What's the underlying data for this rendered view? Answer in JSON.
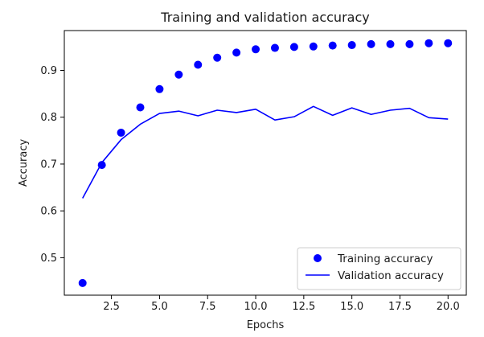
{
  "chart_data": {
    "type": "line",
    "title": "Training and validation accuracy",
    "xlabel": "Epochs",
    "ylabel": "Accuracy",
    "xlim": [
      0.05,
      20.95
    ],
    "ylim": [
      0.42,
      0.985
    ],
    "x_ticks": [
      2.5,
      5.0,
      7.5,
      10.0,
      12.5,
      15.0,
      17.5,
      20.0
    ],
    "x_tick_labels": [
      "2.5",
      "5.0",
      "7.5",
      "10.0",
      "12.5",
      "15.0",
      "17.5",
      "20.0"
    ],
    "y_ticks": [
      0.5,
      0.6,
      0.7,
      0.8,
      0.9
    ],
    "y_tick_labels": [
      "0.5",
      "0.6",
      "0.7",
      "0.8",
      "0.9"
    ],
    "grid": false,
    "legend_position": "lower-right",
    "x": [
      1,
      2,
      3,
      4,
      5,
      6,
      7,
      8,
      9,
      10,
      11,
      12,
      13,
      14,
      15,
      16,
      17,
      18,
      19,
      20
    ],
    "series": [
      {
        "name": "Training accuracy",
        "style": "dots",
        "color": "#0000ff",
        "values": [
          0.446,
          0.698,
          0.767,
          0.821,
          0.86,
          0.891,
          0.912,
          0.927,
          0.938,
          0.945,
          0.948,
          0.95,
          0.951,
          0.953,
          0.954,
          0.956,
          0.956,
          0.956,
          0.958,
          0.958
        ]
      },
      {
        "name": "Validation accuracy",
        "style": "line",
        "color": "#0000ff",
        "values": [
          0.627,
          0.703,
          0.752,
          0.785,
          0.808,
          0.813,
          0.803,
          0.815,
          0.81,
          0.817,
          0.794,
          0.801,
          0.823,
          0.804,
          0.82,
          0.806,
          0.815,
          0.819,
          0.799,
          0.796
        ]
      }
    ]
  }
}
